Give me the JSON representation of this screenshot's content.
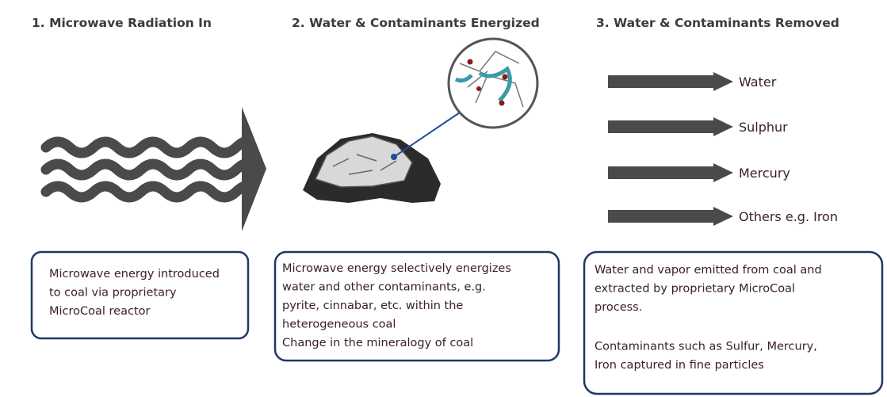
{
  "steps": [
    {
      "title": "1. Microwave Radiation In",
      "paragraphs": [
        [
          "Microwave energy  introduced",
          "to coal via proprietary",
          "MicroCoal reactor"
        ]
      ]
    },
    {
      "title": "2. Water & Contaminants Energized",
      "paragraphs": [
        [
          "Microwave energy selectively energizes",
          "water and other contaminants, e.g.",
          "pyrite, cinnabar, etc. within the",
          "heterogeneous coal",
          "Change in the mineralogy of  coal"
        ]
      ]
    },
    {
      "title": "3. Water & Contaminants Removed",
      "paragraphs": [
        [
          "Water and vapor emitted from coal and",
          "extracted by proprietary MicroCoal",
          "process."
        ],
        [
          "Contaminants such as Sulfur, Mercury,",
          "Iron captured in fine particles"
        ]
      ]
    }
  ],
  "outputs": [
    "Water",
    "Sulphur",
    "Mercury",
    "Others e.g. Iron"
  ]
}
